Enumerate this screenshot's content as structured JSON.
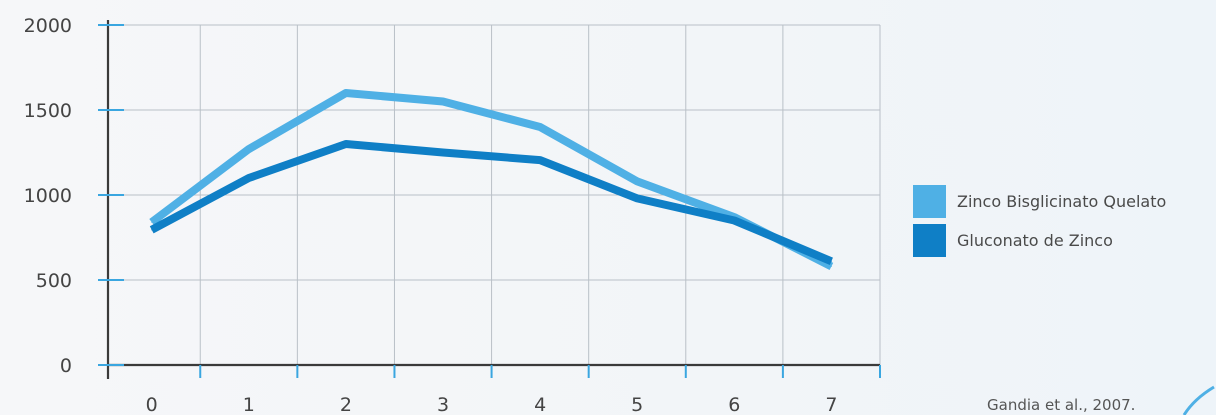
{
  "chart_data": {
    "type": "line",
    "title": "",
    "xlabel": "",
    "ylabel": "",
    "x": [
      0,
      1,
      2,
      3,
      4,
      5,
      6,
      7
    ],
    "xlim": [
      -0.45,
      7.5
    ],
    "ylim": [
      0,
      2000
    ],
    "y_ticks": [
      0,
      500,
      1000,
      1500,
      2000
    ],
    "grid": true,
    "legend_position": "right",
    "series": [
      {
        "name": "Zinco Bisglicinato Quelato",
        "color": "#4fb0e5",
        "values": [
          840,
          1270,
          1600,
          1550,
          1400,
          1080,
          870,
          580
        ]
      },
      {
        "name": "Gluconato de Zinco",
        "color": "#0f7fc6",
        "values": [
          795,
          1100,
          1300,
          1250,
          1205,
          980,
          850,
          610
        ]
      }
    ]
  },
  "colors": {
    "axis": "#3a3a3a",
    "grid": "#b9c0c7",
    "tick_mark": "#3aa6e0",
    "label": "#444444"
  },
  "citation": "Gandia et al., 2007."
}
